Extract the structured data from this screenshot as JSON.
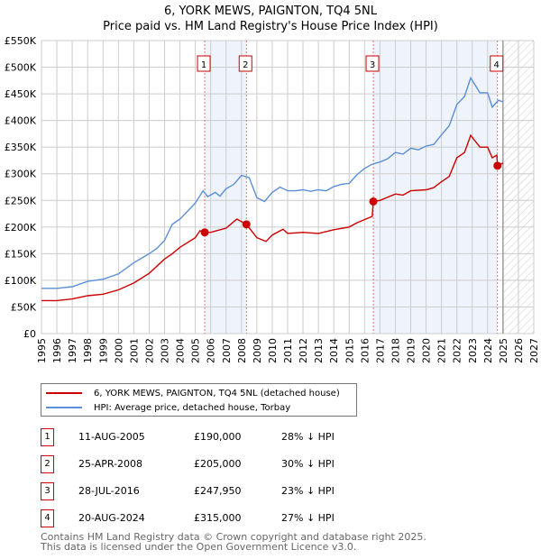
{
  "title": "6, YORK MEWS, PAIGNTON, TQ4 5NL",
  "subtitle": "Price paid vs. HM Land Registry's House Price Index (HPI)",
  "chart_data": {
    "type": "line",
    "title": "6, YORK MEWS, PAIGNTON, TQ4 5NL — Price paid vs. HM Land Registry's House Price Index (HPI)",
    "xlim": [
      1995,
      2027
    ],
    "ylim": [
      0,
      550000
    ],
    "x_ticks": [
      "1995",
      "1996",
      "1997",
      "1998",
      "1999",
      "2000",
      "2001",
      "2002",
      "2003",
      "2004",
      "2005",
      "2006",
      "2007",
      "2008",
      "2009",
      "2010",
      "2011",
      "2012",
      "2013",
      "2014",
      "2015",
      "2016",
      "2017",
      "2018",
      "2019",
      "2020",
      "2021",
      "2022",
      "2023",
      "2024",
      "2025",
      "2026",
      "2027"
    ],
    "y_ticks": [
      "£0",
      "£50K",
      "£100K",
      "£150K",
      "£200K",
      "£250K",
      "£300K",
      "£350K",
      "£400K",
      "£450K",
      "£500K",
      "£550K"
    ],
    "grid": true,
    "data_end": 2025.0,
    "series": [
      {
        "name": "6, YORK MEWS, PAIGNTON, TQ4 5NL (detached house)",
        "color": "#cc0000",
        "x": [
          1995,
          1996,
          1997,
          1998,
          1999,
          2000,
          2001,
          2002,
          2003,
          2003.5,
          2004,
          2005,
          2005.3,
          2005.61,
          2006,
          2007,
          2007.7,
          2008.32,
          2009,
          2009.6,
          2010,
          2010.7,
          2011,
          2012,
          2013,
          2014,
          2015,
          2015.5,
          2016.5,
          2016.57,
          2017,
          2018,
          2018.5,
          2019,
          2020,
          2020.5,
          2021,
          2021.5,
          2022,
          2022.5,
          2022.9,
          2023.5,
          2024,
          2024.3,
          2024.6,
          2024.64,
          2025
        ],
        "y": [
          62000,
          62000,
          65000,
          71000,
          74000,
          82000,
          95000,
          113000,
          140000,
          150000,
          162000,
          180000,
          193000,
          190000,
          190000,
          198000,
          215000,
          205000,
          180000,
          173000,
          185000,
          196000,
          188000,
          190000,
          188000,
          195000,
          200000,
          208000,
          220000,
          247950,
          250000,
          262000,
          260000,
          268000,
          270000,
          274000,
          285000,
          295000,
          330000,
          340000,
          372000,
          350000,
          350000,
          330000,
          335000,
          315000,
          320000
        ]
      },
      {
        "name": "HPI: Average price, detached house, Torbay",
        "color": "#5b8fd6",
        "x": [
          1995,
          1996,
          1997,
          1998,
          1999,
          2000,
          2001,
          2002,
          2002.5,
          2003,
          2003.5,
          2004,
          2004.5,
          2005,
          2005.5,
          2005.8,
          2006.3,
          2006.6,
          2007,
          2007.5,
          2008,
          2008.5,
          2009,
          2009.5,
          2010,
          2010.5,
          2011,
          2011.5,
          2012,
          2012.5,
          2013,
          2013.5,
          2014,
          2014.5,
          2015,
          2015.5,
          2016,
          2016.5,
          2017,
          2017.5,
          2018,
          2018.5,
          2019,
          2019.5,
          2020,
          2020.5,
          2021,
          2021.5,
          2022,
          2022.5,
          2022.9,
          2023.5,
          2024,
          2024.3,
          2024.7,
          2025
        ],
        "y": [
          85000,
          85000,
          88000,
          98000,
          102000,
          112000,
          133000,
          150000,
          160000,
          175000,
          205000,
          215000,
          230000,
          245000,
          268000,
          257000,
          265000,
          258000,
          272000,
          280000,
          297000,
          293000,
          255000,
          248000,
          265000,
          275000,
          268000,
          268000,
          270000,
          267000,
          270000,
          268000,
          276000,
          280000,
          282000,
          298000,
          310000,
          318000,
          322000,
          328000,
          340000,
          337000,
          348000,
          345000,
          352000,
          355000,
          373000,
          390000,
          430000,
          445000,
          480000,
          452000,
          452000,
          425000,
          438000,
          435000
        ]
      }
    ],
    "annotations": [
      {
        "label": "1",
        "date": "11-AUG-2005",
        "x": 2005.61,
        "price": "£190,000",
        "value": 190000,
        "hpi": "28% ↓ HPI"
      },
      {
        "label": "2",
        "date": "25-APR-2008",
        "x": 2008.32,
        "price": "£205,000",
        "value": 205000,
        "hpi": "30% ↓ HPI"
      },
      {
        "label": "3",
        "date": "28-JUL-2016",
        "x": 2016.57,
        "price": "£247,950",
        "value": 247950,
        "hpi": "23% ↓ HPI"
      },
      {
        "label": "4",
        "date": "20-AUG-2024",
        "x": 2024.64,
        "price": "£315,000",
        "value": 315000,
        "hpi": "27% ↓ HPI"
      }
    ]
  },
  "footer": [
    "Contains HM Land Registry data © Crown copyright and database right 2025.",
    "This data is licensed under the Open Government Licence v3.0."
  ]
}
